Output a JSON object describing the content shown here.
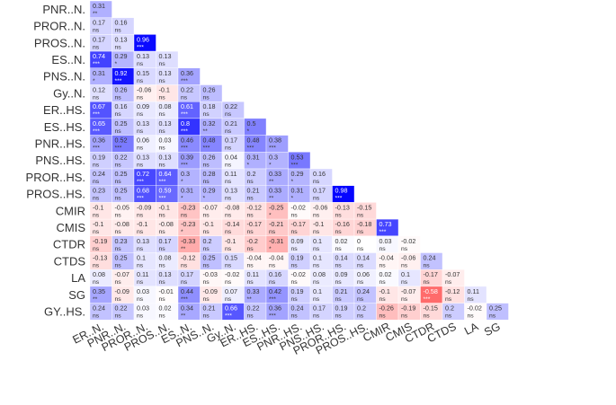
{
  "chart_data": {
    "type": "heatmap",
    "title": "",
    "xlabel": "",
    "ylabel": "",
    "colors": {
      "negative": "#ff0000",
      "zero": "#ffffff",
      "positive": "#0000ff"
    },
    "variables": [
      "ER..N.",
      "PNR..N.",
      "PROR..N.",
      "PROS..N.",
      "ES..N.",
      "PNS..N.",
      "Gy..N.",
      "ER..HS.",
      "ES..HS.",
      "PNR..HS.",
      "PNS..HS.",
      "PROR..HS.",
      "PROS..HS.",
      "CMIR",
      "CMIS",
      "CTDR",
      "CTDS",
      "LA",
      "SG",
      "GY..HS."
    ],
    "row_labels": [
      "PNR..N.",
      "PROR..N.",
      "PROS..N.",
      "ES..N.",
      "PNS..N.",
      "Gy..N.",
      "ER..HS.",
      "ES..HS.",
      "PNR..HS.",
      "PNS..HS.",
      "PROR..HS.",
      "PROS..HS.",
      "CMIR",
      "CMIS",
      "CTDR",
      "CTDS",
      "LA",
      "SG",
      "GY..HS."
    ],
    "col_labels": [
      "ER..N.",
      "PNR..N.",
      "PROR..N.",
      "PROS..N.",
      "ES..N.",
      "PNS..N.",
      "Gy..N.",
      "ER..HS.",
      "ES..HS.",
      "PNR..HS.",
      "PNS..HS.",
      "PROR..HS.",
      "PROS..HS.",
      "CMIR",
      "CMIS",
      "CTDR",
      "CTDS",
      "LA",
      "SG"
    ],
    "values": [
      [
        0.31
      ],
      [
        0.17,
        0.16
      ],
      [
        0.17,
        0.13,
        0.96
      ],
      [
        0.74,
        0.29,
        0.13,
        0.13
      ],
      [
        0.31,
        0.92,
        0.15,
        0.13,
        0.36
      ],
      [
        0.12,
        0.26,
        -0.06,
        -0.1,
        0.22,
        0.26
      ],
      [
        0.67,
        0.16,
        0.09,
        0.08,
        0.61,
        0.18,
        0.22
      ],
      [
        0.65,
        0.25,
        0.13,
        0.13,
        0.8,
        0.32,
        0.21,
        0.5
      ],
      [
        0.36,
        0.52,
        0.06,
        0.03,
        0.46,
        0.48,
        0.17,
        0.48,
        0.38
      ],
      [
        0.19,
        0.22,
        0.13,
        0.13,
        0.39,
        0.26,
        0.04,
        0.31,
        0.3,
        0.53
      ],
      [
        0.24,
        0.25,
        0.72,
        0.64,
        0.3,
        0.28,
        0.11,
        0.2,
        0.33,
        0.29,
        0.16
      ],
      [
        0.23,
        0.25,
        0.68,
        0.59,
        0.31,
        0.29,
        0.13,
        0.21,
        0.33,
        0.31,
        0.17,
        0.98
      ],
      [
        -0.1,
        -0.05,
        -0.09,
        -0.1,
        -0.23,
        -0.07,
        -0.08,
        -0.12,
        -0.25,
        -0.02,
        -0.06,
        -0.13,
        -0.15
      ],
      [
        -0.1,
        -0.08,
        -0.1,
        -0.08,
        -0.23,
        -0.1,
        -0.14,
        -0.17,
        -0.21,
        -0.17,
        -0.1,
        -0.16,
        -0.18,
        0.73
      ],
      [
        -0.19,
        0.23,
        0.13,
        0.17,
        -0.33,
        0.2,
        -0.1,
        -0.2,
        -0.31,
        0.09,
        0.1,
        0.02,
        0,
        0.03,
        -0.02
      ],
      [
        -0.13,
        0.25,
        0.1,
        0.08,
        -0.12,
        0.25,
        0.15,
        -0.04,
        -0.04,
        0.19,
        0.1,
        0.14,
        0.14,
        -0.04,
        -0.06,
        0.24
      ],
      [
        0.08,
        -0.07,
        0.11,
        0.13,
        0.17,
        -0.03,
        -0.02,
        0.11,
        0.16,
        -0.02,
        0.08,
        0.09,
        0.06,
        0.02,
        0.1,
        -0.17,
        -0.07
      ],
      [
        0.35,
        -0.09,
        0.03,
        -0.01,
        0.44,
        -0.09,
        0.07,
        0.33,
        0.42,
        0.19,
        0.1,
        0.21,
        0.24,
        -0.1,
        -0.07,
        -0.58,
        -0.12,
        0.11
      ],
      [
        0.24,
        0.22,
        0.03,
        0.02,
        0.34,
        0.21,
        0.66,
        0.22,
        0.36,
        0.24,
        0.17,
        0.19,
        0.2,
        -0.26,
        -0.19,
        -0.15,
        0.2,
        -0.02,
        0.25
      ]
    ],
    "significance": [
      [
        "**"
      ],
      [
        "ns",
        "ns"
      ],
      [
        "ns",
        "ns",
        "***"
      ],
      [
        "***",
        "*",
        "ns",
        "ns"
      ],
      [
        "*",
        "***",
        "ns",
        "ns",
        "***"
      ],
      [
        "ns",
        "ns",
        "ns",
        "ns",
        "ns",
        "ns"
      ],
      [
        "***",
        "ns",
        "ns",
        "ns",
        "***",
        "ns",
        "ns"
      ],
      [
        "***",
        "ns",
        "ns",
        "ns",
        "***",
        "**",
        "ns",
        "*"
      ],
      [
        "***",
        "***",
        "ns",
        "ns",
        "***",
        "***",
        "ns",
        "***",
        "***"
      ],
      [
        "ns",
        "ns",
        "ns",
        "ns",
        "***",
        "ns",
        "ns",
        "*",
        "*",
        "***"
      ],
      [
        "ns",
        "ns",
        "***",
        "***",
        "*",
        "ns",
        "ns",
        "ns",
        "**",
        "*",
        "ns"
      ],
      [
        "ns",
        "ns",
        "***",
        "***",
        "*",
        "*",
        "ns",
        "ns",
        "**",
        "*",
        "ns",
        "***"
      ],
      [
        "ns",
        "ns",
        "ns",
        "ns",
        "ns",
        "ns",
        "ns",
        "ns",
        "*",
        "ns",
        "ns",
        "ns",
        "ns"
      ],
      [
        "ns",
        "ns",
        "ns",
        "ns",
        "*",
        "ns",
        "ns",
        "ns",
        "ns",
        "ns",
        "ns",
        "ns",
        "ns",
        "***"
      ],
      [
        "ns",
        "ns",
        "ns",
        "ns",
        "**",
        "ns",
        "ns",
        "ns",
        "*",
        "ns",
        "ns",
        "ns",
        "ns",
        "ns",
        "ns"
      ],
      [
        "ns",
        "ns",
        "ns",
        "ns",
        "ns",
        "ns",
        "ns",
        "ns",
        "ns",
        "ns",
        "ns",
        "ns",
        "ns",
        "ns",
        "ns",
        "ns"
      ],
      [
        "ns",
        "ns",
        "ns",
        "ns",
        "ns",
        "ns",
        "ns",
        "ns",
        "ns",
        "ns",
        "ns",
        "ns",
        "ns",
        "ns",
        "ns",
        "ns",
        "ns"
      ],
      [
        "**",
        "ns",
        "ns",
        "ns",
        "***",
        "ns",
        "ns",
        "**",
        "***",
        "ns",
        "ns",
        "ns",
        "ns",
        "ns",
        "ns",
        "***",
        "ns",
        "ns"
      ],
      [
        "ns",
        "ns",
        "ns",
        "ns",
        "**",
        "ns",
        "***",
        "ns",
        "***",
        "ns",
        "ns",
        "ns",
        "ns",
        "ns",
        "ns",
        "ns",
        "ns",
        "ns",
        "ns"
      ]
    ]
  }
}
